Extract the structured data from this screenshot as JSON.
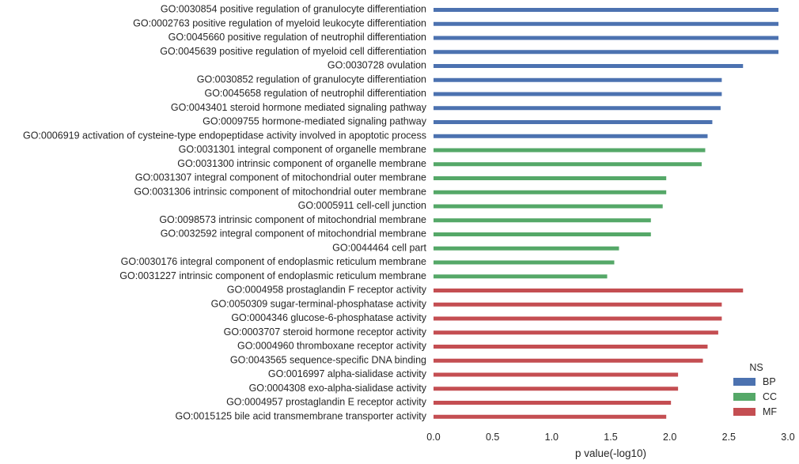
{
  "chart_data": {
    "type": "bar",
    "orientation": "horizontal",
    "xlabel": "p value(-log10)",
    "xlim": [
      0,
      3.0
    ],
    "xticks": [
      "0.0",
      "0.5",
      "1.0",
      "1.5",
      "2.0",
      "2.5",
      "3.0"
    ],
    "legend": {
      "title": "NS",
      "placement": "bottom-right",
      "entries": [
        {
          "name": "BP",
          "color": "#4c72b0"
        },
        {
          "name": "CC",
          "color": "#55a868"
        },
        {
          "name": "MF",
          "color": "#c44e52"
        }
      ]
    },
    "categories": [
      {
        "label": "GO:0030854 positive regulation of granulocyte differentiation",
        "value": 2.92,
        "ns": "BP"
      },
      {
        "label": "GO:0002763 positive regulation of myeloid leukocyte differentiation",
        "value": 2.92,
        "ns": "BP"
      },
      {
        "label": "GO:0045660 positive regulation of neutrophil differentiation",
        "value": 2.92,
        "ns": "BP"
      },
      {
        "label": "GO:0045639 positive regulation of myeloid cell differentiation",
        "value": 2.92,
        "ns": "BP"
      },
      {
        "label": "GO:0030728 ovulation",
        "value": 2.62,
        "ns": "BP"
      },
      {
        "label": "GO:0030852 regulation of granulocyte differentiation",
        "value": 2.44,
        "ns": "BP"
      },
      {
        "label": "GO:0045658 regulation of neutrophil differentiation",
        "value": 2.44,
        "ns": "BP"
      },
      {
        "label": "GO:0043401 steroid hormone mediated signaling pathway",
        "value": 2.43,
        "ns": "BP"
      },
      {
        "label": "GO:0009755 hormone-mediated signaling pathway",
        "value": 2.36,
        "ns": "BP"
      },
      {
        "label": "GO:0006919 activation of cysteine-type endopeptidase activity involved in apoptotic process",
        "value": 2.32,
        "ns": "BP"
      },
      {
        "label": "GO:0031301 integral component of organelle membrane",
        "value": 2.3,
        "ns": "CC"
      },
      {
        "label": "GO:0031300 intrinsic component of organelle membrane",
        "value": 2.27,
        "ns": "CC"
      },
      {
        "label": "GO:0031307 integral component of mitochondrial outer membrane",
        "value": 1.97,
        "ns": "CC"
      },
      {
        "label": "GO:0031306 intrinsic component of mitochondrial outer membrane",
        "value": 1.97,
        "ns": "CC"
      },
      {
        "label": "GO:0005911 cell-cell junction",
        "value": 1.94,
        "ns": "CC"
      },
      {
        "label": "GO:0098573 intrinsic component of mitochondrial membrane",
        "value": 1.84,
        "ns": "CC"
      },
      {
        "label": "GO:0032592 integral component of mitochondrial membrane",
        "value": 1.84,
        "ns": "CC"
      },
      {
        "label": "GO:0044464 cell part",
        "value": 1.57,
        "ns": "CC"
      },
      {
        "label": "GO:0030176 integral component of endoplasmic reticulum membrane",
        "value": 1.53,
        "ns": "CC"
      },
      {
        "label": "GO:0031227 intrinsic component of endoplasmic reticulum membrane",
        "value": 1.47,
        "ns": "CC"
      },
      {
        "label": "GO:0004958 prostaglandin F receptor activity",
        "value": 2.62,
        "ns": "MF"
      },
      {
        "label": "GO:0050309 sugar-terminal-phosphatase activity",
        "value": 2.44,
        "ns": "MF"
      },
      {
        "label": "GO:0004346 glucose-6-phosphatase activity",
        "value": 2.44,
        "ns": "MF"
      },
      {
        "label": "GO:0003707 steroid hormone receptor activity",
        "value": 2.41,
        "ns": "MF"
      },
      {
        "label": "GO:0004960 thromboxane receptor activity",
        "value": 2.32,
        "ns": "MF"
      },
      {
        "label": "GO:0043565 sequence-specific DNA binding",
        "value": 2.28,
        "ns": "MF"
      },
      {
        "label": "GO:0016997 alpha-sialidase activity",
        "value": 2.07,
        "ns": "MF"
      },
      {
        "label": "GO:0004308 exo-alpha-sialidase activity",
        "value": 2.07,
        "ns": "MF"
      },
      {
        "label": "GO:0004957 prostaglandin E receptor activity",
        "value": 2.01,
        "ns": "MF"
      },
      {
        "label": "GO:0015125 bile acid transmembrane transporter activity",
        "value": 1.97,
        "ns": "MF"
      }
    ]
  }
}
